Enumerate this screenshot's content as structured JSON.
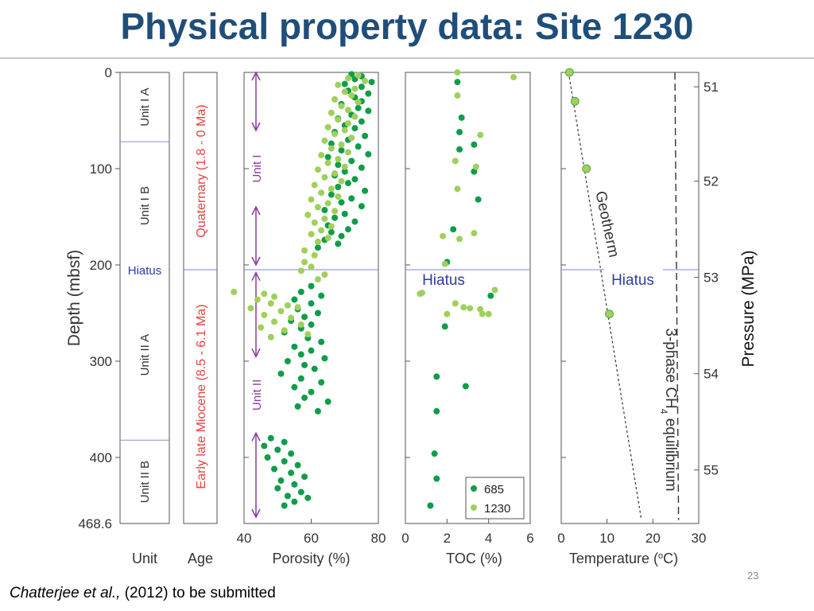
{
  "slide": {
    "title": "Physical property data: Site 1230",
    "citation_authors": "Chatterjee et al.,",
    "citation_rest": " (2012) to be submitted",
    "slide_number": "23"
  },
  "colors": {
    "title": "#1f4e79",
    "site_685": "#0f9d48",
    "site_1230": "#9fd05c",
    "hiatus_line": "#7b88c8",
    "hiatus_text": "#2e3f9e",
    "age_text": "#e8413f",
    "unit_arrow": "#8a3a9e"
  },
  "chart_data": [
    {
      "type": "table",
      "panel": "unit",
      "xlabel": "Unit",
      "ylabel": "Depth  (mbsf)",
      "ylim": [
        0,
        468.6
      ],
      "y_ticks": [
        0,
        100,
        200,
        300,
        400
      ],
      "y_tick_labels": [
        "0",
        "100",
        "200",
        "300",
        "400"
      ],
      "y_end_label": "468.6",
      "hiatus_depth": 205,
      "hiatus_label": "Hiatus",
      "units": [
        {
          "label": "Unit I A",
          "top": 0,
          "bottom": 72
        },
        {
          "label": "Unit I B",
          "top": 72,
          "bottom": 205
        },
        {
          "label": "Unit II A",
          "top": 205,
          "bottom": 382
        },
        {
          "label": "Unit II B",
          "top": 382,
          "bottom": 468.6
        }
      ]
    },
    {
      "type": "table",
      "panel": "age",
      "xlabel": "Age",
      "ages": [
        {
          "label": "Quaternary (1.8 - 0 Ma)",
          "top": 0,
          "bottom": 205
        },
        {
          "label": "Early late Miocene (8.5 - 6.1 Ma)",
          "top": 205,
          "bottom": 468.6
        }
      ]
    },
    {
      "type": "scatter",
      "panel": "porosity",
      "xlabel": "Porosity (%)",
      "xlim": [
        40,
        80
      ],
      "x_ticks": [
        40,
        60,
        80
      ],
      "ylim": [
        0,
        468.6
      ],
      "units_annotation": [
        {
          "label": "Unit I",
          "top": 0,
          "bottom": 200
        },
        {
          "label": "Unit II",
          "top": 208,
          "bottom": 462
        }
      ],
      "series": [
        {
          "name": "685",
          "points": [
            [
              72,
              2
            ],
            [
              75,
              4
            ],
            [
              73,
              7
            ],
            [
              78,
              10
            ],
            [
              70,
              12
            ],
            [
              75,
              15
            ],
            [
              71,
              19
            ],
            [
              77,
              22
            ],
            [
              73,
              26
            ],
            [
              75,
              30
            ],
            [
              69,
              33
            ],
            [
              74,
              37
            ],
            [
              77,
              40
            ],
            [
              72,
              44
            ],
            [
              68,
              48
            ],
            [
              75,
              51
            ],
            [
              70,
              55
            ],
            [
              73,
              58
            ],
            [
              67,
              62
            ],
            [
              76,
              66
            ],
            [
              71,
              70
            ],
            [
              66,
              74
            ],
            [
              74,
              77
            ],
            [
              69,
              81
            ],
            [
              77,
              85
            ],
            [
              65,
              88
            ],
            [
              72,
              92
            ],
            [
              68,
              96
            ],
            [
              75,
              99
            ],
            [
              70,
              103
            ],
            [
              67,
              107
            ],
            [
              73,
              111
            ],
            [
              71,
              115
            ],
            [
              68,
              119
            ],
            [
              76,
              123
            ],
            [
              66,
              127
            ],
            [
              72,
              131
            ],
            [
              69,
              135
            ],
            [
              75,
              139
            ],
            [
              64,
              143
            ],
            [
              70,
              147
            ],
            [
              67,
              151
            ],
            [
              73,
              155
            ],
            [
              65,
              159
            ],
            [
              71,
              163
            ],
            [
              66,
              166
            ],
            [
              69,
              170
            ],
            [
              64,
              174
            ],
            [
              68,
              178
            ],
            [
              62,
              182
            ],
            [
              60,
              222
            ],
            [
              57,
              228
            ],
            [
              63,
              232
            ],
            [
              55,
              236
            ],
            [
              60,
              240
            ],
            [
              56,
              246
            ],
            [
              62,
              250
            ],
            [
              58,
              254
            ],
            [
              54,
              258
            ],
            [
              60,
              262
            ],
            [
              57,
              266
            ],
            [
              52,
              270
            ],
            [
              59,
              276
            ],
            [
              63,
              280
            ],
            [
              55,
              285
            ],
            [
              60,
              289
            ],
            [
              57,
              293
            ],
            [
              64,
              297
            ],
            [
              53,
              300
            ],
            [
              58,
              304
            ],
            [
              61,
              308
            ],
            [
              51,
              313
            ],
            [
              57,
              318
            ],
            [
              63,
              322
            ],
            [
              55,
              327
            ],
            [
              60,
              332
            ],
            [
              58,
              338
            ],
            [
              65,
              342
            ],
            [
              56,
              347
            ],
            [
              62,
              352
            ],
            [
              48,
              380
            ],
            [
              52,
              384
            ],
            [
              46,
              388
            ],
            [
              50,
              392
            ],
            [
              54,
              396
            ],
            [
              47,
              400
            ],
            [
              52,
              404
            ],
            [
              56,
              408
            ],
            [
              49,
              412
            ],
            [
              54,
              416
            ],
            [
              58,
              420
            ],
            [
              51,
              424
            ],
            [
              55,
              428
            ],
            [
              50,
              432
            ],
            [
              57,
              436
            ],
            [
              53,
              440
            ],
            [
              59,
              442
            ],
            [
              55,
              446
            ],
            [
              52,
              450
            ]
          ]
        },
        {
          "name": "1230",
          "points": [
            [
              74,
              3
            ],
            [
              71,
              6
            ],
            [
              76,
              9
            ],
            [
              68,
              13
            ],
            [
              73,
              17
            ],
            [
              70,
              20
            ],
            [
              72,
              24
            ],
            [
              67,
              28
            ],
            [
              74,
              31
            ],
            [
              69,
              35
            ],
            [
              71,
              39
            ],
            [
              66,
              42
            ],
            [
              73,
              46
            ],
            [
              68,
              49
            ],
            [
              71,
              53
            ],
            [
              65,
              57
            ],
            [
              70,
              60
            ],
            [
              67,
              64
            ],
            [
              72,
              68
            ],
            [
              64,
              71
            ],
            [
              69,
              75
            ],
            [
              66,
              79
            ],
            [
              71,
              83
            ],
            [
              63,
              86
            ],
            [
              68,
              90
            ],
            [
              65,
              94
            ],
            [
              70,
              98
            ],
            [
              62,
              101
            ],
            [
              67,
              105
            ],
            [
              64,
              109
            ],
            [
              69,
              113
            ],
            [
              61,
              117
            ],
            [
              66,
              121
            ],
            [
              63,
              125
            ],
            [
              68,
              129
            ],
            [
              60,
              132
            ],
            [
              65,
              136
            ],
            [
              62,
              140
            ],
            [
              67,
              144
            ],
            [
              59,
              148
            ],
            [
              64,
              152
            ],
            [
              61,
              156
            ],
            [
              66,
              160
            ],
            [
              63,
              164
            ],
            [
              60,
              168
            ],
            [
              65,
              172
            ],
            [
              62,
              176
            ],
            [
              58,
              185
            ],
            [
              61,
              190
            ],
            [
              58,
              197
            ],
            [
              60,
              202
            ],
            [
              57,
              206
            ],
            [
              64,
              210
            ],
            [
              62,
              215
            ],
            [
              37,
              228
            ],
            [
              46,
              230
            ],
            [
              49,
              233
            ],
            [
              44,
              236
            ],
            [
              48,
              240
            ],
            [
              53,
              242
            ],
            [
              42,
              245
            ],
            [
              51,
              248
            ],
            [
              56,
              244
            ],
            [
              46,
              252
            ],
            [
              54,
              255
            ],
            [
              49,
              259
            ],
            [
              57,
              262
            ],
            [
              45,
              265
            ],
            [
              52,
              268
            ],
            [
              59,
              272
            ],
            [
              48,
              275
            ]
          ]
        }
      ]
    },
    {
      "type": "scatter",
      "panel": "toc",
      "xlabel": "TOC (%)",
      "xlim": [
        0,
        6
      ],
      "x_ticks": [
        0,
        2,
        4,
        6
      ],
      "ylim": [
        0,
        468.6
      ],
      "hiatus_label": "Hiatus",
      "legend": [
        "685",
        "1230"
      ],
      "legend_position": "bottom-right",
      "series": [
        {
          "name": "685",
          "points": [
            [
              2.5,
              10
            ],
            [
              2.7,
              47
            ],
            [
              2.6,
              62
            ],
            [
              3.3,
              75
            ],
            [
              2.6,
              80
            ],
            [
              3.3,
              103
            ],
            [
              3.5,
              132
            ],
            [
              2.3,
              163
            ],
            [
              2.0,
              197
            ],
            [
              4.1,
              232
            ],
            [
              1.9,
              264
            ],
            [
              1.5,
              316
            ],
            [
              2.9,
              326
            ],
            [
              1.5,
              352
            ],
            [
              1.4,
              396
            ],
            [
              1.5,
              422
            ],
            [
              1.2,
              450
            ]
          ]
        },
        {
          "name": "1230",
          "points": [
            [
              2.5,
              0
            ],
            [
              5.2,
              5
            ],
            [
              2.5,
              24
            ],
            [
              3.6,
              65
            ],
            [
              2.4,
              92
            ],
            [
              3.4,
              98
            ],
            [
              2.5,
              121
            ],
            [
              3.3,
              167
            ],
            [
              1.8,
              170
            ],
            [
              2.6,
              173
            ],
            [
              1.9,
              199
            ],
            [
              0.8,
              229
            ],
            [
              4.3,
              226
            ],
            [
              0.7,
              230
            ],
            [
              2.4,
              240
            ],
            [
              3.1,
              245
            ],
            [
              3.6,
              246
            ],
            [
              2.0,
              251
            ],
            [
              2.8,
              244
            ],
            [
              4.0,
              251
            ],
            [
              3.7,
              251
            ]
          ]
        }
      ]
    },
    {
      "type": "line",
      "panel": "temperature",
      "xlabel": "Temperature (oC)",
      "xlim": [
        0,
        30
      ],
      "x_ticks": [
        0,
        10,
        20,
        30
      ],
      "ylim": [
        0,
        468.6
      ],
      "hiatus_label": "Hiatus",
      "points": [
        [
          1.8,
          0
        ],
        [
          3.0,
          30
        ],
        [
          5.5,
          100
        ],
        [
          10.5,
          251
        ]
      ],
      "geotherm_line": {
        "label": "Geotherm",
        "start": [
          1.6,
          0
        ],
        "end": [
          17.5,
          465
        ]
      },
      "equilibrium_line": {
        "label_before": "3-phase CH",
        "label_sub": "4",
        "label_after": " equilibrium",
        "start": [
          24.8,
          0
        ],
        "end": [
          25.6,
          465
        ]
      },
      "right_axis_label": "Pressure (MPa)",
      "right_ticks": [
        {
          "label": "51",
          "depth": 15
        },
        {
          "label": "52",
          "depth": 113
        },
        {
          "label": "53",
          "depth": 213
        },
        {
          "label": "54",
          "depth": 313
        },
        {
          "label": "55",
          "depth": 413
        }
      ]
    }
  ]
}
